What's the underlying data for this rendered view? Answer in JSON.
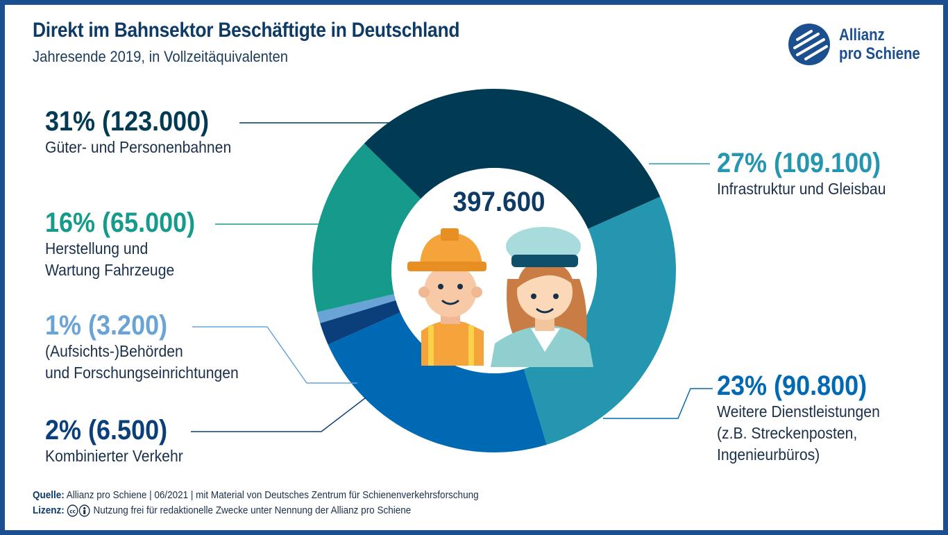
{
  "header": {
    "title": "Direkt im Bahnsektor Beschäftigte in Deutschland",
    "subtitle": "Jahresende 2019, in Vollzeitäquivalenten"
  },
  "logo": {
    "line1": "Allianz",
    "line2": "pro Schiene"
  },
  "total": "397.600",
  "chart_data": {
    "type": "pie",
    "donut": true,
    "center_label": "397.600",
    "start_angle_deg": 66,
    "direction": "clockwise",
    "segments": [
      {
        "key": "infra",
        "percent": 27,
        "value": 109100,
        "color": "#2596b0",
        "pct_label": "27% (109.100)",
        "desc": "Infrastruktur und Gleisbau"
      },
      {
        "key": "weitere",
        "percent": 23,
        "value": 90800,
        "color": "#0069b4",
        "pct_label": "23% (90.800)",
        "desc": "Weitere Dienstleistungen\n(z.B. Streckenposten,\nIngenieurbüros)"
      },
      {
        "key": "kombi",
        "percent": 2,
        "value": 6500,
        "color": "#0b3f7c",
        "pct_label": "2% (6.500)",
        "desc": "Kombinierter Verkehr"
      },
      {
        "key": "behoerden",
        "percent": 1,
        "value": 3200,
        "color": "#6aa3d5",
        "pct_label": "1% (3.200)",
        "desc": "(Aufsichts-)Behörden\nund Forschungseinrichtungen"
      },
      {
        "key": "herstellung",
        "percent": 16,
        "value": 65000,
        "color": "#169a8c",
        "pct_label": "16% (65.000)",
        "desc": "Herstellung und\nWartung Fahrzeuge"
      },
      {
        "key": "gueter",
        "percent": 31,
        "value": 123000,
        "color": "#003a53",
        "pct_label": "31% (123.000)",
        "desc": "Güter- und Personenbahnen"
      }
    ]
  },
  "footer": {
    "source_label": "Quelle:",
    "source_text": "Allianz pro Schiene | 06/2021 | mit Material von Deutsches Zentrum für Schienenverkehrsforschung",
    "license_label": "Lizenz:",
    "license_text": "Nutzung frei für redaktionelle Zwecke unter Nennung der Allianz pro Schiene"
  }
}
